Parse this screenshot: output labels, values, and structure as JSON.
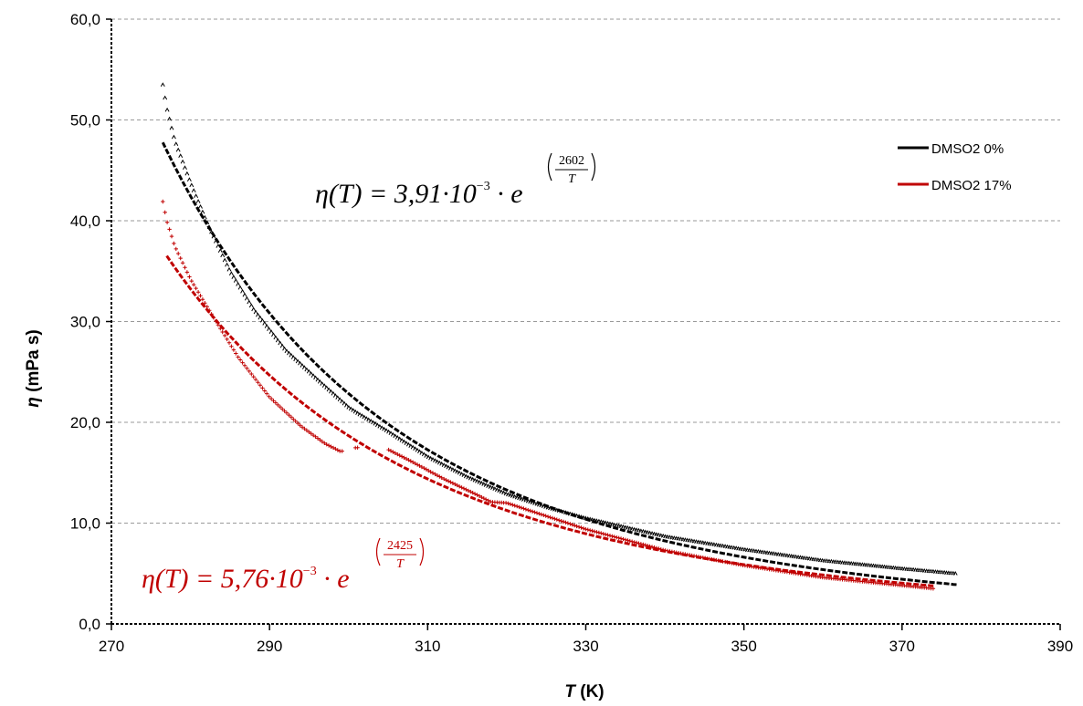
{
  "chart_data": {
    "type": "scatter",
    "title": "",
    "xlabel_symbol": "T",
    "xlabel_unit": "(K)",
    "ylabel_symbol": "η",
    "ylabel_unit": "(mPa s)",
    "xlim": [
      270,
      390
    ],
    "ylim": [
      0,
      60
    ],
    "xticks": [
      270,
      290,
      310,
      330,
      350,
      370,
      390
    ],
    "yticks": [
      0,
      10,
      20,
      30,
      40,
      50,
      60
    ],
    "ytick_labels": [
      "0,0",
      "10,0",
      "20,0",
      "30,0",
      "40,0",
      "50,0",
      "60,0"
    ],
    "grid": "horizontal dashed",
    "legend_position": "upper-right",
    "series": [
      {
        "name": "DMSO2 0%",
        "color": "#000000",
        "fit": {
          "a": 0.00391,
          "b": 2602,
          "x_range": [
            276.5,
            377
          ]
        },
        "experimental": [
          [
            276.5,
            53.5
          ],
          [
            277,
            51.2
          ],
          [
            278,
            48.0
          ],
          [
            280,
            43.8
          ],
          [
            282,
            40.0
          ],
          [
            285,
            35.0
          ],
          [
            288,
            31.2
          ],
          [
            292,
            27.2
          ],
          [
            296,
            24.3
          ],
          [
            300,
            21.5
          ],
          [
            301,
            21.0
          ],
          [
            305,
            19.1
          ],
          [
            310,
            16.6
          ],
          [
            315,
            14.6
          ],
          [
            320,
            12.9
          ],
          [
            325,
            11.6
          ],
          [
            330,
            10.5
          ],
          [
            340,
            8.7
          ],
          [
            350,
            7.4
          ],
          [
            360,
            6.3
          ],
          [
            370,
            5.5
          ],
          [
            377,
            5.0
          ]
        ]
      },
      {
        "name": "DMSO2 17%",
        "color": "#c00000",
        "fit": {
          "a": 0.00576,
          "b": 2425,
          "x_range": [
            277,
            374
          ]
        },
        "experimental": [
          [
            276.5,
            41.9
          ],
          [
            277,
            40.0
          ],
          [
            278,
            37.5
          ],
          [
            280,
            34.2
          ],
          [
            283,
            30.3
          ],
          [
            286,
            26.5
          ],
          [
            290,
            22.5
          ],
          [
            294,
            19.6
          ],
          [
            297,
            17.9
          ],
          [
            299,
            17.1
          ],
          [
            301,
            17.5
          ],
          [
            305,
            17.3
          ],
          [
            308,
            16.1
          ],
          [
            312,
            14.4
          ],
          [
            316,
            12.9
          ],
          [
            318,
            12.1
          ],
          [
            320,
            12.0
          ],
          [
            325,
            10.7
          ],
          [
            330,
            9.4
          ],
          [
            340,
            7.3
          ],
          [
            350,
            5.8
          ],
          [
            360,
            4.6
          ],
          [
            374,
            3.5
          ]
        ]
      }
    ],
    "annotations": {
      "eq0": {
        "lhs": "η(T) = 3,91·10",
        "exp": "−3",
        "base": " · e",
        "num": "2602",
        "den": "T",
        "color": "#000000"
      },
      "eq17": {
        "lhs": "η(T) = 5,76·10",
        "exp": "−3",
        "base": " · e",
        "num": "2425",
        "den": "T",
        "color": "#c00000"
      }
    }
  }
}
